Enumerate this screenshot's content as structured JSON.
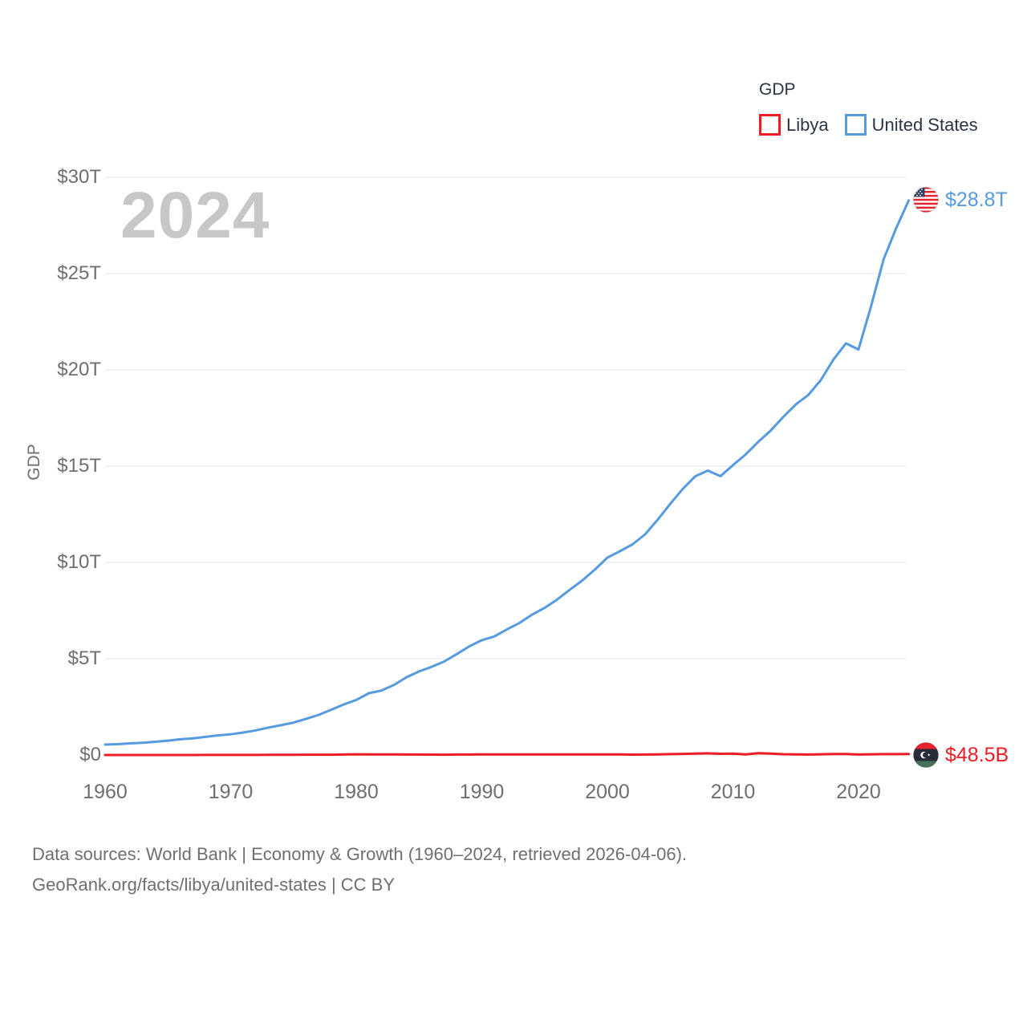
{
  "watermark": "2024",
  "legend": {
    "title": "GDP",
    "items": [
      {
        "label": "Libya",
        "color": "#ee1c25"
      },
      {
        "label": "United States",
        "color": "#569be0"
      }
    ]
  },
  "y_axis": {
    "title": "GDP",
    "tick_labels": [
      "$30T",
      "$25T",
      "$20T",
      "$15T",
      "$10T",
      "$5T",
      "$0"
    ],
    "tick_values": [
      30,
      25,
      20,
      15,
      10,
      5,
      0
    ]
  },
  "x_axis": {
    "tick_labels": [
      "1960",
      "1970",
      "1980",
      "1990",
      "2000",
      "2010",
      "2020"
    ],
    "tick_values": [
      1960,
      1970,
      1980,
      1990,
      2000,
      2010,
      2020
    ]
  },
  "end_labels": {
    "united_states": {
      "value": "$28.8T",
      "flag_icon": "us-flag-icon",
      "color": "#569be0"
    },
    "libya": {
      "value": "$48.5B",
      "flag_icon": "libya-flag-icon",
      "color": "#ee1c25"
    }
  },
  "footer": {
    "line1": "Data sources: World Bank | Economy & Growth (1960–2024, retrieved 2026-04-06).",
    "line2": "GeoRank.org/facts/libya/united-states | CC BY"
  },
  "colors": {
    "united_states_series": "#569be0",
    "libya_series": "#ee1c25",
    "gridline": "#ededed",
    "axis_text": "#6f6f6f",
    "legend_text": "#2a3447",
    "watermark": "#c7c7c7"
  },
  "chart_data": {
    "type": "line",
    "title": "GDP",
    "xlabel": "",
    "ylabel": "GDP",
    "y_unit": "trillions of USD",
    "ylim": [
      0,
      30
    ],
    "xlim": [
      1960,
      2024
    ],
    "grid": "horizontal",
    "legend_position": "top-right",
    "x": [
      1960,
      1961,
      1962,
      1963,
      1964,
      1965,
      1966,
      1967,
      1968,
      1969,
      1970,
      1971,
      1972,
      1973,
      1974,
      1975,
      1976,
      1977,
      1978,
      1979,
      1980,
      1981,
      1982,
      1983,
      1984,
      1985,
      1986,
      1987,
      1988,
      1989,
      1990,
      1991,
      1992,
      1993,
      1994,
      1995,
      1996,
      1997,
      1998,
      1999,
      2000,
      2001,
      2002,
      2003,
      2004,
      2005,
      2006,
      2007,
      2008,
      2009,
      2010,
      2011,
      2012,
      2013,
      2014,
      2015,
      2016,
      2017,
      2018,
      2019,
      2020,
      2021,
      2022,
      2023,
      2024
    ],
    "series": [
      {
        "name": "Libya",
        "color": "#ee1c25",
        "end_label": "$48.5B",
        "values_unit": "trillion USD",
        "values": [
          0.00015,
          0.00017,
          0.00019,
          0.00023,
          0.00033,
          0.00139,
          0.00187,
          0.00208,
          0.00277,
          0.00314,
          0.00391,
          0.00464,
          0.00543,
          0.00707,
          0.01155,
          0.01179,
          0.01545,
          0.01849,
          0.01861,
          0.02447,
          0.03554,
          0.03114,
          0.03138,
          0.029,
          0.02696,
          0.02584,
          0.02153,
          0.01852,
          0.02351,
          0.02444,
          0.0289,
          0.0305,
          0.032,
          0.03,
          0.028,
          0.0275,
          0.0295,
          0.0302,
          0.0273,
          0.03,
          0.0339,
          0.0341,
          0.0205,
          0.0263,
          0.0331,
          0.0473,
          0.0565,
          0.0718,
          0.0871,
          0.063,
          0.0748,
          0.0347,
          0.0925,
          0.0754,
          0.0411,
          0.0278,
          0.0262,
          0.0381,
          0.0526,
          0.0521,
          0.0254,
          0.039,
          0.0458,
          0.0451,
          0.0485
        ]
      },
      {
        "name": "United States",
        "color": "#569be0",
        "end_label": "$28.8T",
        "values_unit": "trillion USD",
        "values": [
          0.543,
          0.563,
          0.605,
          0.639,
          0.686,
          0.744,
          0.815,
          0.862,
          0.943,
          1.02,
          1.073,
          1.165,
          1.279,
          1.425,
          1.545,
          1.685,
          1.873,
          2.082,
          2.352,
          2.627,
          2.857,
          3.207,
          3.344,
          3.634,
          4.038,
          4.339,
          4.58,
          4.855,
          5.236,
          5.642,
          5.963,
          6.158,
          6.52,
          6.859,
          7.287,
          7.64,
          8.073,
          8.578,
          9.063,
          9.631,
          10.251,
          10.582,
          10.936,
          11.458,
          12.217,
          13.039,
          13.816,
          14.474,
          14.77,
          14.478,
          15.049,
          15.6,
          16.254,
          16.844,
          17.551,
          18.206,
          18.695,
          19.477,
          20.533,
          21.381,
          21.06,
          23.315,
          25.744,
          27.361,
          28.8
        ]
      }
    ]
  }
}
